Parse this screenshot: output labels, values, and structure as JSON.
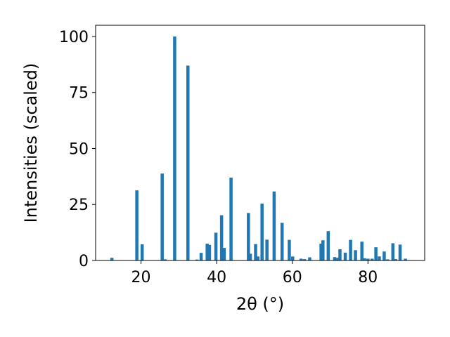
{
  "chart_data": {
    "type": "bar",
    "title": "",
    "xlabel": "2θ (°)",
    "ylabel": "Intensities (scaled)",
    "xlim": [
      8,
      95
    ],
    "ylim": [
      0,
      105
    ],
    "xticks": [
      20,
      40,
      60,
      80
    ],
    "yticks": [
      0,
      25,
      50,
      75,
      100
    ],
    "grid": false,
    "legend": "none",
    "bar_color": "#1f77b4",
    "x": [
      12.3,
      18.9,
      20.3,
      25.6,
      26.4,
      28.9,
      32.4,
      34.8,
      35.9,
      37.5,
      38.1,
      39.8,
      41.3,
      42.0,
      43.8,
      48.4,
      48.9,
      50.3,
      50.9,
      52.0,
      53.3,
      55.2,
      57.3,
      59.2,
      60.1,
      62.3,
      63.2,
      64.6,
      67.6,
      68.1,
      69.5,
      71.2,
      71.8,
      72.6,
      74.0,
      75.4,
      76.7,
      78.4,
      79.1,
      80.0,
      81.1,
      82.1,
      83.0,
      84.3,
      85.2,
      86.6,
      87.3,
      88.5,
      89.9
    ],
    "values": [
      1.2,
      31.3,
      7.2,
      38.8,
      0.5,
      100,
      87,
      0.4,
      3.4,
      7.5,
      7.0,
      12.4,
      20.2,
      5.6,
      37.0,
      21.2,
      3.0,
      7.3,
      1.8,
      25.4,
      9.3,
      30.8,
      16.8,
      9.2,
      1.8,
      0.8,
      0.6,
      1.4,
      7.5,
      9.0,
      13.1,
      1.5,
      1.2,
      5.0,
      3.5,
      9.2,
      4.6,
      8.4,
      1.0,
      0.8,
      0.8,
      5.9,
      1.8,
      4.0,
      0.5,
      7.7,
      0.6,
      7.1,
      0.8
    ]
  }
}
